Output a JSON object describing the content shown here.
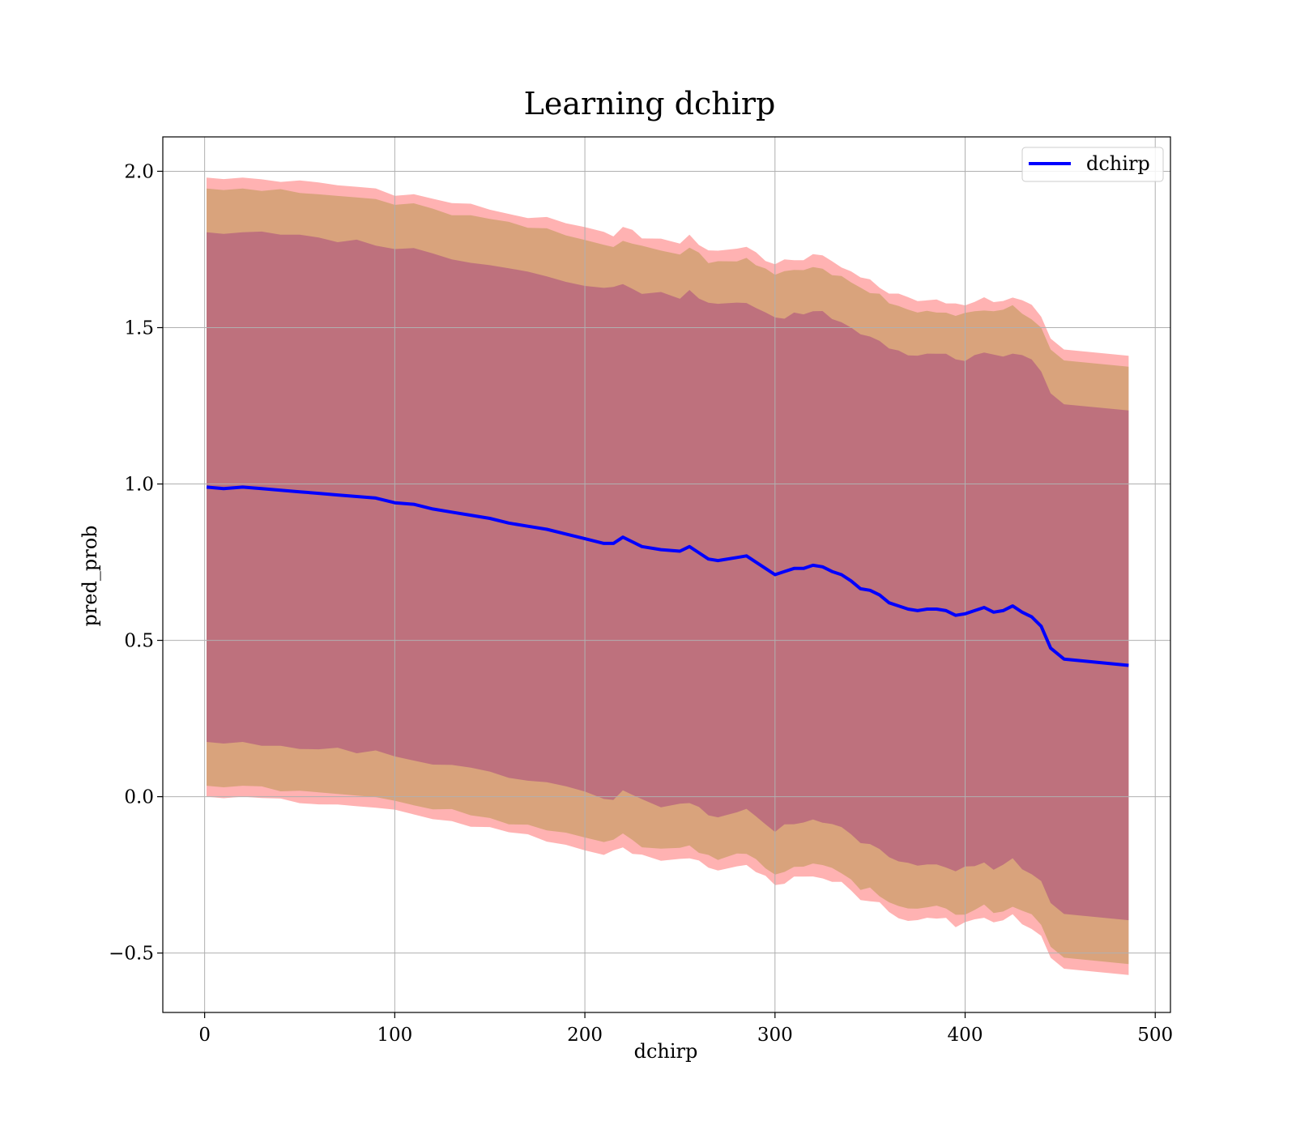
{
  "chart_data": {
    "type": "line",
    "title": "Learning dchirp",
    "xlabel": "dchirp",
    "ylabel": "pred_prob",
    "xlim": [
      -22,
      508
    ],
    "ylim": [
      -0.69,
      2.11
    ],
    "xticks": [
      0,
      100,
      200,
      300,
      400,
      500
    ],
    "xtick_labels": [
      "0",
      "100",
      "200",
      "300",
      "400",
      "500"
    ],
    "yticks": [
      -0.5,
      0.0,
      0.5,
      1.0,
      1.5,
      2.0
    ],
    "ytick_labels": [
      "−0.5",
      "0.0",
      "0.5",
      "1.0",
      "1.5",
      "2.0"
    ],
    "grid": true,
    "legend": {
      "position": "top-right",
      "entries": [
        "dchirp"
      ]
    },
    "colors": {
      "line": "#0000ff",
      "band_outer": "#ff0000",
      "band_middle": "#808000",
      "band_inner": "#800080",
      "grid": "#b0b0b0"
    },
    "band_half_widths": {
      "outer": 0.99,
      "middle": 0.955,
      "inner": 0.815
    },
    "series": [
      {
        "name": "dchirp",
        "x": [
          1,
          10,
          20,
          30,
          40,
          50,
          60,
          70,
          80,
          90,
          100,
          110,
          120,
          130,
          140,
          150,
          160,
          170,
          180,
          190,
          200,
          210,
          215,
          220,
          225,
          230,
          240,
          250,
          255,
          260,
          265,
          270,
          280,
          285,
          290,
          295,
          300,
          305,
          310,
          315,
          320,
          325,
          330,
          335,
          340,
          345,
          350,
          355,
          360,
          365,
          370,
          375,
          380,
          385,
          390,
          395,
          400,
          405,
          410,
          415,
          420,
          425,
          430,
          435,
          440,
          445,
          452,
          486
        ],
        "y": [
          0.99,
          0.985,
          0.99,
          0.985,
          0.98,
          0.975,
          0.97,
          0.965,
          0.96,
          0.955,
          0.94,
          0.935,
          0.92,
          0.91,
          0.9,
          0.89,
          0.875,
          0.865,
          0.855,
          0.84,
          0.825,
          0.81,
          0.81,
          0.83,
          0.815,
          0.8,
          0.79,
          0.785,
          0.8,
          0.78,
          0.76,
          0.755,
          0.765,
          0.77,
          0.75,
          0.73,
          0.71,
          0.72,
          0.73,
          0.73,
          0.74,
          0.735,
          0.72,
          0.71,
          0.69,
          0.665,
          0.66,
          0.645,
          0.62,
          0.61,
          0.6,
          0.595,
          0.6,
          0.6,
          0.595,
          0.58,
          0.585,
          0.595,
          0.605,
          0.59,
          0.595,
          0.61,
          0.59,
          0.575,
          0.545,
          0.475,
          0.44,
          0.42
        ]
      }
    ]
  }
}
